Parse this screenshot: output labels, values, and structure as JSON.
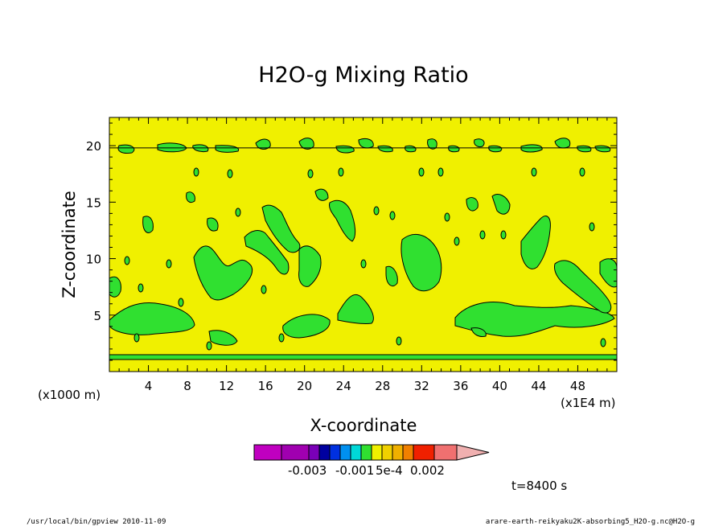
{
  "chart_data": {
    "type": "contour",
    "title": "H2O-g Mixing Ratio",
    "xlabel": "X-coordinate",
    "ylabel": "Z-coordinate",
    "x_unit": "(x1E4 m)",
    "y_unit": "(x1000 m)",
    "xlim": [
      0,
      52
    ],
    "ylim": [
      0,
      22.5
    ],
    "x_ticks": [
      4,
      8,
      12,
      16,
      20,
      24,
      28,
      32,
      36,
      40,
      44,
      48
    ],
    "y_ticks": [
      5,
      10,
      15,
      20
    ],
    "background_level_color": "#f0f000",
    "anomaly_level_color": "#30e030",
    "colorbar": {
      "colors": [
        "#c000c0",
        "#a000b0",
        "#7a00b8",
        "#0000a0",
        "#0030e0",
        "#0090f0",
        "#00d8d8",
        "#30e030",
        "#f0f000",
        "#f0d000",
        "#f0b000",
        "#f08000",
        "#f02000",
        "#f07070",
        "#f0b0b0"
      ],
      "labels": [
        "-0.003",
        "-0.001",
        "5e-4",
        "0.002"
      ]
    },
    "time_label": "t=8400 s"
  },
  "footer": {
    "left": "/usr/local/bin/gpview   2010-11-09",
    "right": "arare-earth-reikyaku2K-absorbing5_H2O-g.nc@H2O-g"
  }
}
